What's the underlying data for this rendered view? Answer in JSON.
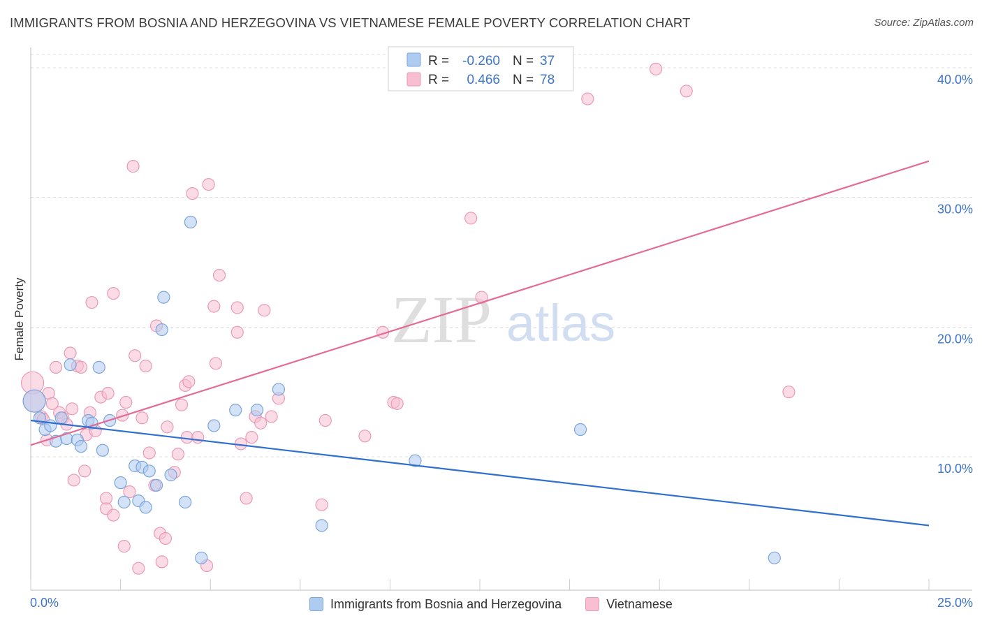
{
  "header": {
    "title": "IMMIGRANTS FROM BOSNIA AND HERZEGOVINA VS VIETNAMESE FEMALE POVERTY CORRELATION CHART",
    "source": "Source: ZipAtlas.com"
  },
  "watermark": {
    "zip": "ZIP",
    "atlas": "atlas"
  },
  "colors": {
    "blue_fill": "#aecbf0",
    "blue_stroke": "#7aa6dc",
    "blue_line": "#2f6fd0",
    "pink_fill": "#f7bfd1",
    "pink_stroke": "#ea9ab5",
    "pink_line": "#e46b95",
    "tick_label": "#3e74c8",
    "grid": "#dddddd"
  },
  "legend_top": [
    {
      "r_label": "R =",
      "r_value": "-0.260",
      "n_label": "N =",
      "n_value": "37",
      "series": "blue"
    },
    {
      "r_label": "R =",
      "r_value": "0.466",
      "n_label": "N =",
      "n_value": "78",
      "series": "pink"
    }
  ],
  "legend_bottom": [
    {
      "label": "Immigrants from Bosnia and Herzegovina",
      "series": "blue"
    },
    {
      "label": "Vietnamese",
      "series": "pink"
    }
  ],
  "chart_data": {
    "type": "scatter",
    "title": "IMMIGRANTS FROM BOSNIA AND HERZEGOVINA VS VIETNAMESE FEMALE POVERTY CORRELATION CHART",
    "xlabel": "",
    "ylabel": "Female Poverty",
    "xlim": [
      0,
      25
    ],
    "ylim": [
      0,
      40.5
    ],
    "x_tick_labels": [
      "0.0%",
      "25.0%"
    ],
    "y_ticks": [
      10,
      20,
      30,
      40
    ],
    "y_tick_labels": [
      "10.0%",
      "20.0%",
      "30.0%",
      "40.0%"
    ],
    "grid": true,
    "series": [
      {
        "name": "Immigrants from Bosnia and Herzegovina",
        "color": "blue",
        "R": -0.26,
        "N": 37,
        "trend": {
          "x": [
            0,
            25
          ],
          "y": [
            12.8,
            4.7
          ]
        },
        "points": [
          [
            0.1,
            14.3
          ],
          [
            0.25,
            13.0
          ],
          [
            0.4,
            12.1
          ],
          [
            0.55,
            12.4
          ],
          [
            0.7,
            11.2
          ],
          [
            0.85,
            13.0
          ],
          [
            1.0,
            11.4
          ],
          [
            1.1,
            17.1
          ],
          [
            1.3,
            11.3
          ],
          [
            1.4,
            10.8
          ],
          [
            1.6,
            12.8
          ],
          [
            1.7,
            12.6
          ],
          [
            1.9,
            16.9
          ],
          [
            2.0,
            10.5
          ],
          [
            2.2,
            12.8
          ],
          [
            2.5,
            8.0
          ],
          [
            2.6,
            6.5
          ],
          [
            2.9,
            9.3
          ],
          [
            3.0,
            6.6
          ],
          [
            3.1,
            9.2
          ],
          [
            3.2,
            6.1
          ],
          [
            3.3,
            8.9
          ],
          [
            3.5,
            7.8
          ],
          [
            3.65,
            19.8
          ],
          [
            3.7,
            22.3
          ],
          [
            3.9,
            8.6
          ],
          [
            4.3,
            6.5
          ],
          [
            4.45,
            28.1
          ],
          [
            4.75,
            2.2
          ],
          [
            5.1,
            12.4
          ],
          [
            5.7,
            13.6
          ],
          [
            6.3,
            13.6
          ],
          [
            6.9,
            15.2
          ],
          [
            8.1,
            4.7
          ],
          [
            10.7,
            9.7
          ],
          [
            15.3,
            12.1
          ],
          [
            20.7,
            2.2
          ]
        ]
      },
      {
        "name": "Vietnamese",
        "color": "pink",
        "R": 0.466,
        "N": 78,
        "trend": {
          "x": [
            0,
            25
          ],
          "y": [
            10.9,
            32.8
          ]
        },
        "points": [
          [
            0.05,
            15.7
          ],
          [
            0.1,
            14.3
          ],
          [
            0.3,
            13.1
          ],
          [
            0.45,
            11.3
          ],
          [
            0.5,
            14.9
          ],
          [
            0.6,
            14.1
          ],
          [
            0.7,
            16.9
          ],
          [
            0.8,
            13.4
          ],
          [
            0.9,
            13.0
          ],
          [
            1.0,
            12.5
          ],
          [
            1.1,
            18.0
          ],
          [
            1.15,
            13.7
          ],
          [
            1.2,
            8.2
          ],
          [
            1.3,
            17.0
          ],
          [
            1.4,
            16.9
          ],
          [
            1.5,
            8.9
          ],
          [
            1.55,
            11.7
          ],
          [
            1.65,
            13.4
          ],
          [
            1.7,
            21.9
          ],
          [
            1.8,
            12.0
          ],
          [
            1.95,
            14.6
          ],
          [
            2.1,
            6.0
          ],
          [
            2.1,
            6.8
          ],
          [
            2.15,
            14.9
          ],
          [
            2.3,
            5.5
          ],
          [
            2.3,
            22.6
          ],
          [
            2.55,
            13.2
          ],
          [
            2.6,
            3.1
          ],
          [
            2.65,
            14.2
          ],
          [
            2.75,
            7.3
          ],
          [
            2.85,
            32.4
          ],
          [
            2.9,
            17.8
          ],
          [
            3.0,
            1.4
          ],
          [
            3.1,
            13.0
          ],
          [
            3.2,
            17.0
          ],
          [
            3.3,
            10.3
          ],
          [
            3.45,
            7.8
          ],
          [
            3.5,
            20.1
          ],
          [
            3.6,
            4.1
          ],
          [
            3.65,
            1.9
          ],
          [
            3.75,
            3.7
          ],
          [
            3.8,
            12.3
          ],
          [
            4.0,
            8.8
          ],
          [
            4.1,
            10.2
          ],
          [
            4.2,
            14.0
          ],
          [
            4.3,
            15.5
          ],
          [
            4.35,
            11.5
          ],
          [
            4.4,
            15.8
          ],
          [
            4.5,
            30.3
          ],
          [
            4.65,
            11.5
          ],
          [
            4.9,
            1.6
          ],
          [
            4.95,
            31.0
          ],
          [
            5.1,
            21.6
          ],
          [
            5.15,
            17.2
          ],
          [
            5.25,
            24.0
          ],
          [
            5.75,
            21.5
          ],
          [
            5.75,
            19.6
          ],
          [
            5.85,
            11.0
          ],
          [
            6.0,
            6.8
          ],
          [
            6.15,
            11.5
          ],
          [
            6.25,
            13.1
          ],
          [
            6.4,
            12.6
          ],
          [
            6.5,
            21.3
          ],
          [
            6.7,
            13.1
          ],
          [
            6.9,
            14.5
          ],
          [
            8.1,
            6.3
          ],
          [
            8.2,
            12.8
          ],
          [
            9.3,
            11.6
          ],
          [
            9.8,
            19.6
          ],
          [
            10.1,
            14.2
          ],
          [
            10.2,
            14.1
          ],
          [
            12.25,
            28.4
          ],
          [
            12.55,
            22.3
          ],
          [
            15.5,
            37.6
          ],
          [
            17.4,
            39.9
          ],
          [
            18.25,
            38.2
          ],
          [
            21.1,
            15.0
          ],
          [
            0.35,
            12.9
          ]
        ]
      }
    ]
  }
}
